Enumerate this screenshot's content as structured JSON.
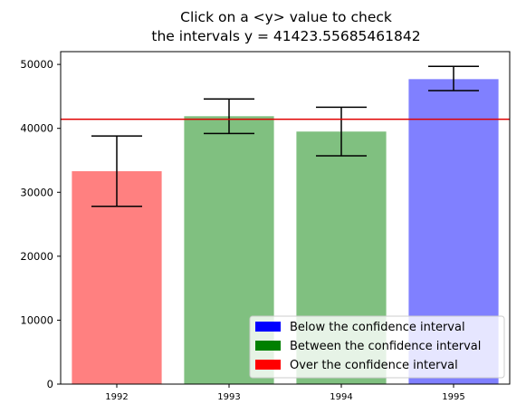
{
  "chart_data": {
    "type": "bar",
    "title_lines": [
      "Click on a <y> value to check",
      "the intervals    y = 41423.55685461842"
    ],
    "categories": [
      "1992",
      "1993",
      "1994",
      "1995"
    ],
    "values": [
      33300,
      41900,
      39500,
      47700
    ],
    "error_low": [
      27800,
      39200,
      35700,
      45900
    ],
    "error_high": [
      38800,
      44600,
      43300,
      49700
    ],
    "bar_colors": [
      "#ff8080",
      "#80c080",
      "#80c080",
      "#8080ff"
    ],
    "threshold": 41423.55685461842,
    "threshold_color": "#e00000",
    "ylim": [
      0,
      52000
    ],
    "yticks": [
      0,
      10000,
      20000,
      30000,
      40000,
      50000
    ],
    "ytick_labels": [
      "0",
      "10000",
      "20000",
      "30000",
      "40000",
      "50000"
    ],
    "grid": false,
    "legend": {
      "placement": "lower-right",
      "items": [
        {
          "label": "Below the confidence interval",
          "color": "#0000ff"
        },
        {
          "label": "Between the confidence interval",
          "color": "#008000"
        },
        {
          "label": "Over the confidence interval",
          "color": "#ff0000"
        }
      ]
    }
  }
}
